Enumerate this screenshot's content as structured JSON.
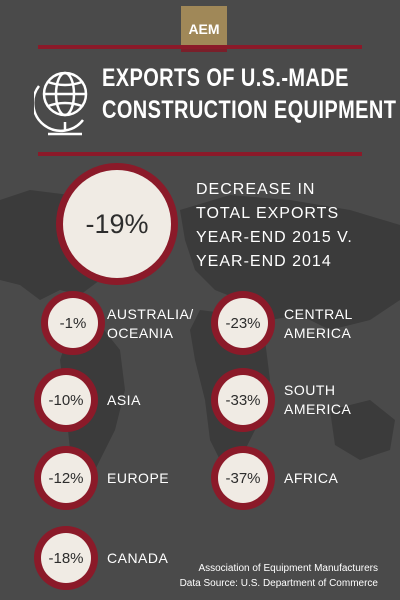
{
  "brand": {
    "logo_text": "AEM",
    "logo_color": "#a08858",
    "accent_color": "#8b1a29"
  },
  "header": {
    "title_line1": "EXPORTS OF U.S.-MADE",
    "title_line2": "CONSTRUCTION EQUIPMENT",
    "icon": "globe-icon"
  },
  "headline": {
    "value": "-19%",
    "text_lines": [
      "DECREASE IN",
      "TOTAL EXPORTS",
      "YEAR-END 2015 V.",
      "YEAR-END 2014"
    ]
  },
  "regions": [
    {
      "value": "-1%",
      "label_lines": [
        "AUSTRALIA/",
        "OCEANIA"
      ]
    },
    {
      "value": "-10%",
      "label_lines": [
        "ASIA"
      ]
    },
    {
      "value": "-12%",
      "label_lines": [
        "EUROPE"
      ]
    },
    {
      "value": "-18%",
      "label_lines": [
        "CANADA"
      ]
    },
    {
      "value": "-23%",
      "label_lines": [
        "CENTRAL",
        "AMERICA"
      ]
    },
    {
      "value": "-33%",
      "label_lines": [
        "SOUTH",
        "AMERICA"
      ]
    },
    {
      "value": "-37%",
      "label_lines": [
        "AFRICA"
      ]
    }
  ],
  "footer": {
    "line1": "Association of Equipment Manufacturers",
    "line2": "Data Source: U.S. Department of Commerce"
  }
}
